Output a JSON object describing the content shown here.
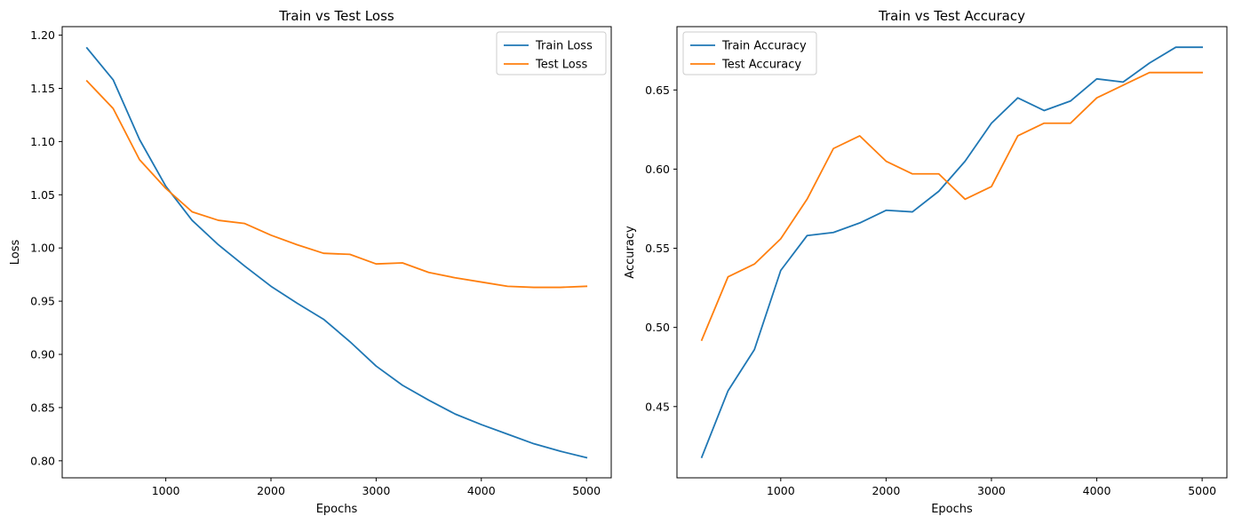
{
  "chart_data": [
    {
      "type": "line",
      "title": "Train vs Test Loss",
      "xlabel": "Epochs",
      "ylabel": "Loss",
      "xlim": [
        15,
        5235
      ],
      "ylim": [
        0.784,
        1.208
      ],
      "xticks": [
        1000,
        2000,
        3000,
        4000,
        5000
      ],
      "xtick_labels": [
        "1000",
        "2000",
        "3000",
        "4000",
        "5000"
      ],
      "yticks": [
        0.8,
        0.85,
        0.9,
        0.95,
        1.0,
        1.05,
        1.1,
        1.15,
        1.2
      ],
      "ytick_labels": [
        "0.80",
        "0.85",
        "0.90",
        "0.95",
        "1.00",
        "1.05",
        "1.10",
        "1.15",
        "1.20"
      ],
      "grid": false,
      "legend": "top-right",
      "x": [
        250,
        500,
        750,
        1000,
        1250,
        1500,
        1750,
        2000,
        2250,
        2500,
        2750,
        3000,
        3250,
        3500,
        3750,
        4000,
        4250,
        4500,
        4750,
        5000
      ],
      "series": [
        {
          "name": "Train Loss",
          "color": "#1f77b4",
          "values": [
            1.188,
            1.158,
            1.102,
            1.058,
            1.026,
            1.003,
            0.983,
            0.964,
            0.948,
            0.933,
            0.912,
            0.889,
            0.871,
            0.857,
            0.844,
            0.834,
            0.825,
            0.816,
            0.809,
            0.803
          ]
        },
        {
          "name": "Test Loss",
          "color": "#ff7f0e",
          "values": [
            1.157,
            1.131,
            1.083,
            1.056,
            1.034,
            1.026,
            1.023,
            1.012,
            1.003,
            0.995,
            0.994,
            0.985,
            0.986,
            0.977,
            0.972,
            0.968,
            0.964,
            0.963,
            0.963,
            0.964
          ]
        }
      ]
    },
    {
      "type": "line",
      "title": "Train vs Test Accuracy",
      "xlabel": "Epochs",
      "ylabel": "Accuracy",
      "xlim": [
        15,
        5235
      ],
      "ylim": [
        0.405,
        0.69
      ],
      "xticks": [
        1000,
        2000,
        3000,
        4000,
        5000
      ],
      "xtick_labels": [
        "1000",
        "2000",
        "3000",
        "4000",
        "5000"
      ],
      "yticks": [
        0.45,
        0.5,
        0.55,
        0.6,
        0.65
      ],
      "ytick_labels": [
        "0.45",
        "0.50",
        "0.55",
        "0.60",
        "0.65"
      ],
      "grid": false,
      "legend": "top-left",
      "x": [
        250,
        500,
        750,
        1000,
        1250,
        1500,
        1750,
        2000,
        2250,
        2500,
        2750,
        3000,
        3250,
        3500,
        3750,
        4000,
        4250,
        4500,
        4750,
        5000
      ],
      "series": [
        {
          "name": "Train Accuracy",
          "color": "#1f77b4",
          "values": [
            0.418,
            0.46,
            0.486,
            0.536,
            0.558,
            0.56,
            0.566,
            0.574,
            0.573,
            0.586,
            0.605,
            0.629,
            0.645,
            0.637,
            0.643,
            0.657,
            0.655,
            0.667,
            0.677,
            0.677
          ]
        },
        {
          "name": "Test Accuracy",
          "color": "#ff7f0e",
          "values": [
            0.492,
            0.532,
            0.54,
            0.556,
            0.581,
            0.613,
            0.621,
            0.605,
            0.597,
            0.597,
            0.581,
            0.589,
            0.621,
            0.629,
            0.629,
            0.645,
            0.653,
            0.661,
            0.661,
            0.661
          ]
        }
      ]
    }
  ]
}
